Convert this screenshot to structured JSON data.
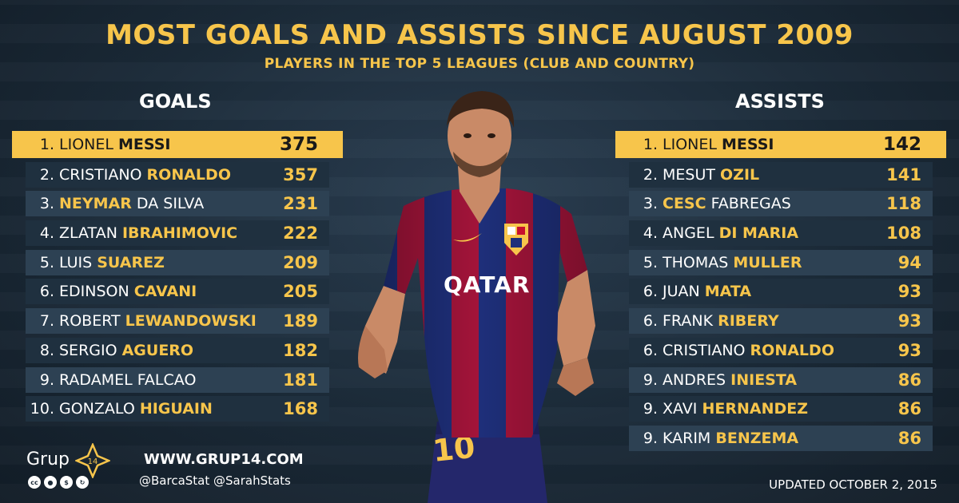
{
  "title": "MOST GOALS AND ASSISTS SINCE AUGUST 2009",
  "subtitle": "PLAYERS IN THE TOP 5 LEAGUES (CLUB AND COUNTRY)",
  "goals": {
    "heading": "GOALS",
    "rows": [
      {
        "rank": "1.",
        "first": "LIONEL ",
        "last": "MESSI",
        "value": "375"
      },
      {
        "rank": "2.",
        "first": "CRISTIANO ",
        "last": "RONALDO",
        "value": "357"
      },
      {
        "rank": "3.",
        "first": "NEYMAR",
        "last": " DA SILVA",
        "value": "231"
      },
      {
        "rank": "4.",
        "first": "ZLATAN ",
        "last": "IBRAHIMOVIC",
        "value": "222"
      },
      {
        "rank": "5.",
        "first": "LUIS ",
        "last": "SUAREZ",
        "value": "209"
      },
      {
        "rank": "6.",
        "first": "EDINSON ",
        "last": "CAVANI",
        "value": "205"
      },
      {
        "rank": "7.",
        "first": "ROBERT ",
        "last": "LEWANDOWSKI",
        "value": "189"
      },
      {
        "rank": "8.",
        "first": "SERGIO ",
        "last": "AGUERO",
        "value": "182"
      },
      {
        "rank": "9.",
        "first": "RADAMEL ",
        "last": "FALCAO",
        "value": "181"
      },
      {
        "rank": "10.",
        "first": "GONZALO ",
        "last": "HIGUAIN",
        "value": "168"
      }
    ]
  },
  "assists": {
    "heading": "ASSISTS",
    "rows": [
      {
        "rank": "1.",
        "first": "LIONEL ",
        "last": "MESSI",
        "value": "142"
      },
      {
        "rank": "2.",
        "first": "MESUT ",
        "last": "OZIL",
        "value": "141"
      },
      {
        "rank": "3.",
        "first": "CESC",
        "last": " FABREGAS",
        "value": "118"
      },
      {
        "rank": "4.",
        "first": "ANGEL ",
        "last": "DI MARIA",
        "value": "108"
      },
      {
        "rank": "5.",
        "first": "THOMAS ",
        "last": "MULLER",
        "value": "94"
      },
      {
        "rank": "6.",
        "first": "JUAN ",
        "last": "MATA",
        "value": "93"
      },
      {
        "rank": "6.",
        "first": "FRANK ",
        "last": "RIBERY",
        "value": "93"
      },
      {
        "rank": "6.",
        "first": "CRISTIANO ",
        "last": "RONALDO",
        "value": "93"
      },
      {
        "rank": "9.",
        "first": "ANDRES ",
        "last": "INIESTA",
        "value": "86"
      },
      {
        "rank": "9.",
        "first": "XAVI ",
        "last": "HERNANDEZ",
        "value": "86"
      },
      {
        "rank": "9.",
        "first": "KARIM ",
        "last": "BENZEMA",
        "value": "86"
      }
    ]
  },
  "footer": {
    "logo_text": "Grup",
    "logo_number": "14",
    "website": "WWW.GRUP14.COM",
    "handles": "@BarcaStat  @SarahStats",
    "updated": "UPDATED OCTOBER 2, 2015",
    "license_icons": [
      "cc",
      "by",
      "nc",
      "sa"
    ]
  },
  "photo": {
    "jersey_sponsor": "QATAR",
    "shirt_number": "10"
  },
  "colors": {
    "accent": "#f7c54b",
    "row": "#2d4153",
    "row_alt": "#1f303f",
    "background": "#1b2a38"
  }
}
